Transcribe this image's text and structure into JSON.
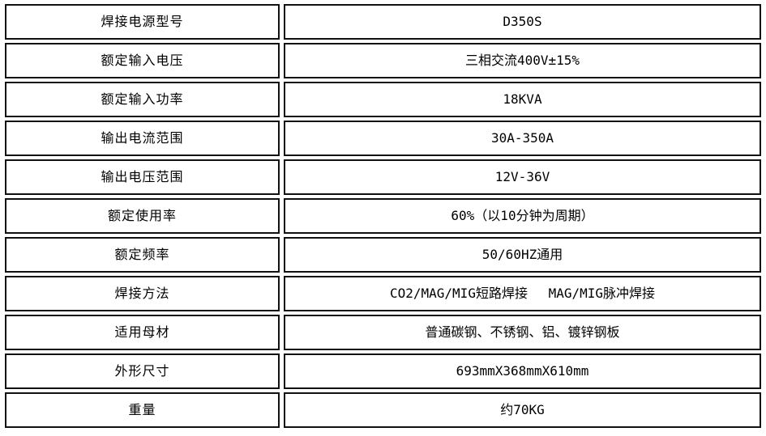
{
  "table": {
    "name": "welding-power-source-specifications",
    "border_color": "#111111",
    "background_color": "#ffffff",
    "text_color": "#000000",
    "rows": [
      {
        "label": "焊接电源型号",
        "value": "D350S"
      },
      {
        "label": "额定输入电压",
        "value": "三相交流400V±15%"
      },
      {
        "label": "额定输入功率",
        "value": "18KVA"
      },
      {
        "label": "输出电流范围",
        "value": "30A-350A"
      },
      {
        "label": "输出电压范围",
        "value": "12V-36V"
      },
      {
        "label": "额定使用率",
        "value": "60%（以10分钟为周期）"
      },
      {
        "label": "额定频率",
        "value": "50/60HZ通用"
      },
      {
        "label": "焊接方法",
        "value": "CO2/MAG/MIG短路焊接　 MAG/MIG脉冲焊接"
      },
      {
        "label": "适用母材",
        "value": "普通碳钢、不锈钢、铝、镀锌钢板"
      },
      {
        "label": "外形尺寸",
        "value": "693mmX368mmX610mm"
      },
      {
        "label": "重量",
        "value": "约70KG"
      }
    ]
  }
}
